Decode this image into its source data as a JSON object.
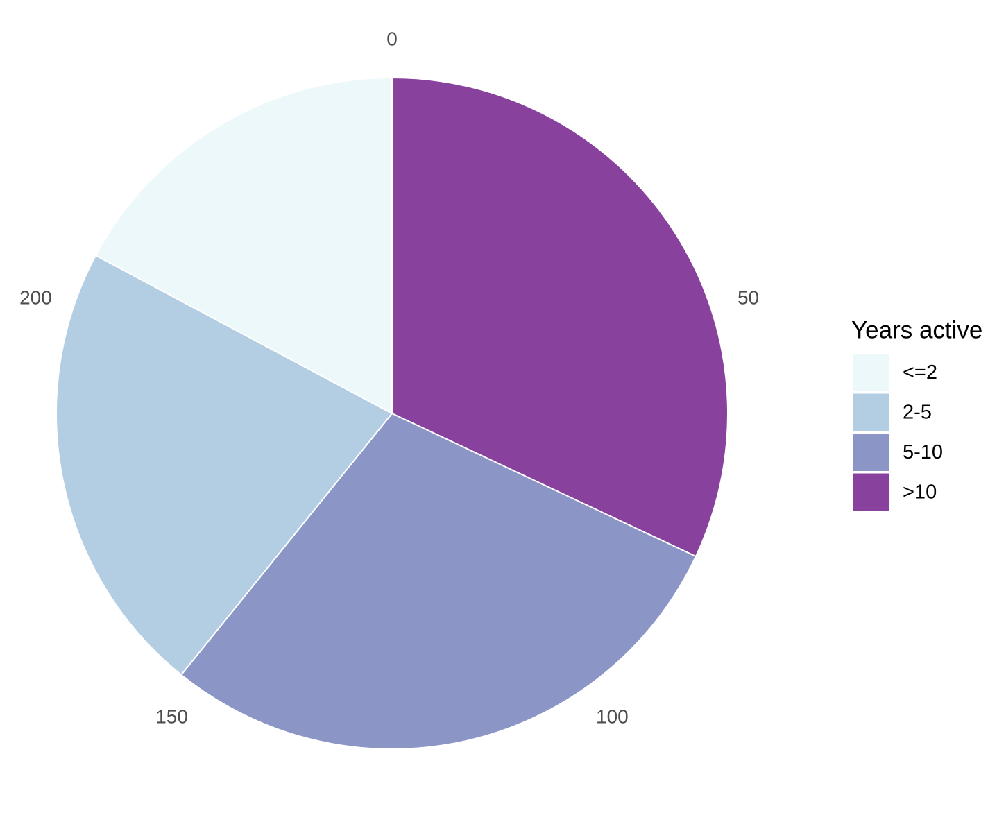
{
  "chart_data": {
    "type": "pie",
    "coord": "polar",
    "start": "top",
    "direction": "clockwise",
    "categories": [
      ">10",
      "5-10",
      "2-5",
      "<=2"
    ],
    "values": [
      80,
      72,
      55,
      43
    ],
    "total": 250,
    "colors": [
      "#88419d",
      "#8c96c6",
      "#b3cde3",
      "#edf8fb"
    ],
    "theta_ticks": [
      {
        "value": 0,
        "label": "0"
      },
      {
        "value": 50,
        "label": "50"
      },
      {
        "value": 100,
        "label": "100"
      },
      {
        "value": 150,
        "label": "150"
      },
      {
        "value": 200,
        "label": "200"
      }
    ],
    "legend": {
      "title": "Years active",
      "position": "right",
      "entries": [
        {
          "label": "<=2",
          "color": "#edf8fb"
        },
        {
          "label": "2-5",
          "color": "#b3cde3"
        },
        {
          "label": "5-10",
          "color": "#8c96c6"
        },
        {
          "label": ">10",
          "color": "#88419d"
        }
      ]
    },
    "title": "",
    "xlabel": "",
    "ylabel": "",
    "grid": false
  }
}
